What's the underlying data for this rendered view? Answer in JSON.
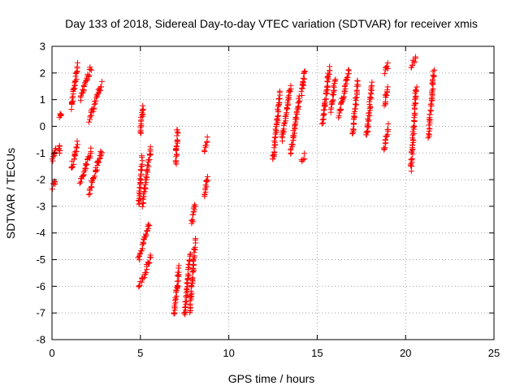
{
  "chart_data": {
    "type": "scatter",
    "title": "Day 133 of 2018, Sidereal Day-to-day VTEC variation (SDTVAR) for receiver xmis",
    "xlabel": "GPS time / hours",
    "ylabel": "SDTVAR / TECUs",
    "xlim": [
      0,
      25
    ],
    "ylim": [
      -8,
      3
    ],
    "xticks": [
      0,
      5,
      10,
      15,
      20,
      25
    ],
    "yticks": [
      -8,
      -7,
      -6,
      -5,
      -4,
      -3,
      -2,
      -1,
      0,
      1,
      2,
      3
    ],
    "grid": true,
    "marker": "+",
    "color": "#ff0000",
    "series": [
      {
        "name": "xmis",
        "segments": [
          {
            "x": [
              0.05,
              0.2
            ],
            "y": [
              -1.3,
              -0.8
            ]
          },
          {
            "x": [
              0.05,
              0.2
            ],
            "y": [
              -2.3,
              -2.0
            ]
          },
          {
            "x": [
              0.4,
              0.45
            ],
            "y": [
              -1.0,
              -0.7
            ]
          },
          {
            "x": [
              0.45,
              0.5
            ],
            "y": [
              0.4,
              0.4
            ]
          },
          {
            "x": [
              1.1,
              1.45
            ],
            "y": [
              0.7,
              2.3
            ]
          },
          {
            "x": [
              1.1,
              1.45
            ],
            "y": [
              -1.6,
              -0.6
            ]
          },
          {
            "x": [
              1.6,
              2.2
            ],
            "y": [
              1.0,
              2.2
            ]
          },
          {
            "x": [
              1.6,
              2.2
            ],
            "y": [
              -2.2,
              -0.9
            ]
          },
          {
            "x": [
              2.1,
              2.8
            ],
            "y": [
              0.2,
              1.6
            ]
          },
          {
            "x": [
              2.1,
              2.8
            ],
            "y": [
              -2.5,
              -0.9
            ]
          },
          {
            "x": [
              4.9,
              5.1
            ],
            "y": [
              -3.0,
              -1.2
            ]
          },
          {
            "x": [
              5.0,
              5.15
            ],
            "y": [
              -0.3,
              0.8
            ]
          },
          {
            "x": [
              5.1,
              5.6
            ],
            "y": [
              -3.0,
              -0.8
            ]
          },
          {
            "x": [
              4.9,
              5.3
            ],
            "y": [
              -6.0,
              -5.5
            ]
          },
          {
            "x": [
              4.9,
              5.5
            ],
            "y": [
              -5.0,
              -3.7
            ]
          },
          {
            "x": [
              5.3,
              5.6
            ],
            "y": [
              -5.4,
              -4.9
            ]
          },
          {
            "x": [
              6.9,
              7.2
            ],
            "y": [
              -7.1,
              -5.3
            ]
          },
          {
            "x": [
              7.0,
              7.1
            ],
            "y": [
              -1.5,
              -0.1
            ]
          },
          {
            "x": [
              7.5,
              7.8
            ],
            "y": [
              -7.1,
              -4.8
            ]
          },
          {
            "x": [
              7.8,
              8.1
            ],
            "y": [
              -7.0,
              -4.3
            ]
          },
          {
            "x": [
              7.9,
              8.1
            ],
            "y": [
              -3.6,
              -2.9
            ]
          },
          {
            "x": [
              8.6,
              8.8
            ],
            "y": [
              -2.6,
              -1.9
            ]
          },
          {
            "x": [
              8.6,
              8.8
            ],
            "y": [
              -0.9,
              -0.5
            ]
          },
          {
            "x": [
              12.5,
              12.9
            ],
            "y": [
              -1.3,
              1.3
            ]
          },
          {
            "x": [
              13.0,
              13.5
            ],
            "y": [
              -0.5,
              1.5
            ]
          },
          {
            "x": [
              13.5,
              14.0
            ],
            "y": [
              -1.0,
              1.1
            ]
          },
          {
            "x": [
              14.1,
              14.3
            ],
            "y": [
              1.2,
              2.1
            ]
          },
          {
            "x": [
              14.1,
              14.3
            ],
            "y": [
              -1.3,
              -1.1
            ]
          },
          {
            "x": [
              15.3,
              15.7
            ],
            "y": [
              0.1,
              2.2
            ]
          },
          {
            "x": [
              15.8,
              16.0
            ],
            "y": [
              0.6,
              1.8
            ]
          },
          {
            "x": [
              16.2,
              16.8
            ],
            "y": [
              0.4,
              2.1
            ]
          },
          {
            "x": [
              17.0,
              17.3
            ],
            "y": [
              -0.3,
              1.7
            ]
          },
          {
            "x": [
              17.8,
              18.1
            ],
            "y": [
              -0.4,
              1.6
            ]
          },
          {
            "x": [
              18.8,
              19.0
            ],
            "y": [
              2.0,
              2.3
            ]
          },
          {
            "x": [
              18.8,
              19.0
            ],
            "y": [
              0.8,
              1.4
            ]
          },
          {
            "x": [
              18.8,
              19.0
            ],
            "y": [
              -0.9,
              0.0
            ]
          },
          {
            "x": [
              20.3,
              20.6
            ],
            "y": [
              2.2,
              2.6
            ]
          },
          {
            "x": [
              20.3,
              20.6
            ],
            "y": [
              -1.6,
              1.5
            ]
          },
          {
            "x": [
              21.3,
              21.6
            ],
            "y": [
              -0.4,
              2.1
            ]
          }
        ]
      }
    ]
  }
}
